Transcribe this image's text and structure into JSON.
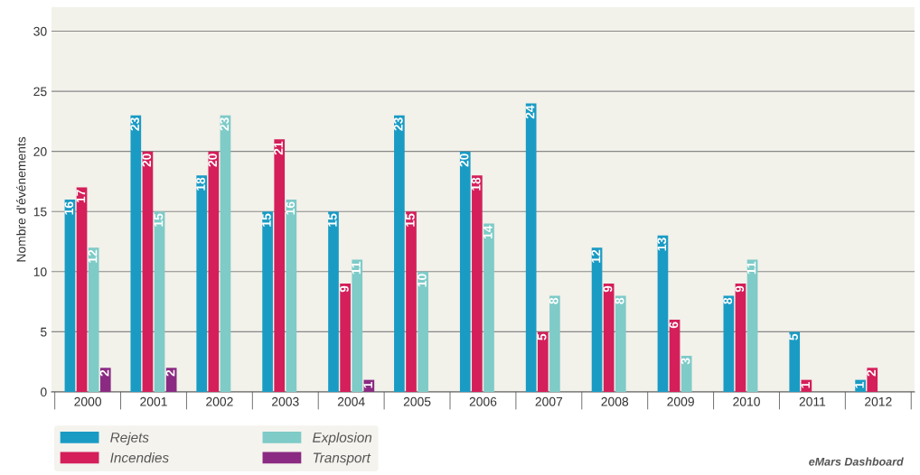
{
  "chart_data": {
    "type": "bar",
    "ylabel": "Nombre d'événements",
    "categories": [
      "2000",
      "2001",
      "2002",
      "2003",
      "2004",
      "2005",
      "2006",
      "2007",
      "2008",
      "2009",
      "2010",
      "2011",
      "2012"
    ],
    "series": [
      {
        "name": "Rejets",
        "color": "#1a9bc4",
        "values": [
          16,
          23,
          18,
          15,
          15,
          23,
          20,
          24,
          12,
          13,
          8,
          5,
          1
        ]
      },
      {
        "name": "Incendies",
        "color": "#d41f5a",
        "values": [
          17,
          20,
          20,
          21,
          9,
          15,
          18,
          5,
          9,
          6,
          9,
          1,
          2
        ]
      },
      {
        "name": "Explosion",
        "color": "#7ecbc8",
        "values": [
          12,
          15,
          23,
          16,
          11,
          10,
          14,
          8,
          8,
          3,
          11,
          null,
          null
        ]
      },
      {
        "name": "Transport",
        "color": "#8b2a82",
        "values": [
          2,
          2,
          null,
          null,
          1,
          null,
          null,
          null,
          null,
          null,
          null,
          null,
          null
        ]
      }
    ],
    "ylim": [
      0,
      32
    ],
    "yticks": [
      0,
      5,
      10,
      15,
      20,
      25,
      30
    ],
    "grid": "y",
    "legend": "bottom left",
    "data_labels": true,
    "annotations": [
      "eMars Dashboard"
    ]
  }
}
